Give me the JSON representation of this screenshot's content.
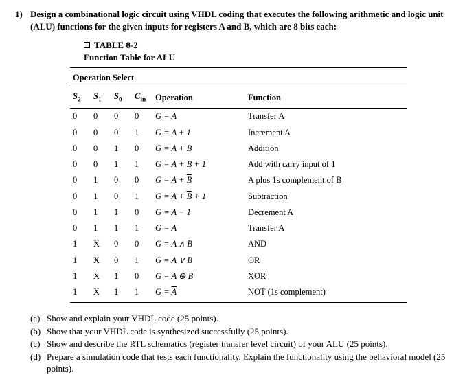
{
  "question": {
    "num": "1)",
    "prompt": "Design a combinational logic circuit using VHDL coding that executes the following arithmetic and logic unit (ALU) functions for the given inputs for registers A and B, which are 8 bits each:"
  },
  "table": {
    "label_title": "TABLE 8-2",
    "label_sub": "Function Table for ALU",
    "group_header": "Operation Select",
    "headers": {
      "s2": "S",
      "s1": "S",
      "s0": "S",
      "cin": "C",
      "op": "Operation",
      "fn": "Function",
      "s2_sub": "2",
      "s1_sub": "1",
      "s0_sub": "0",
      "cin_sub": "in"
    },
    "rows": [
      {
        "s": [
          "0",
          "0",
          "0",
          "0"
        ],
        "op": "G = A",
        "fn": "Transfer A"
      },
      {
        "s": [
          "0",
          "0",
          "0",
          "1"
        ],
        "op": "G = A + 1",
        "fn": "Increment A"
      },
      {
        "s": [
          "0",
          "0",
          "1",
          "0"
        ],
        "op": "G = A + B",
        "fn": "Addition"
      },
      {
        "s": [
          "0",
          "0",
          "1",
          "1"
        ],
        "op": "G = A + B + 1",
        "fn": "Add with carry input of 1"
      },
      {
        "s": [
          "0",
          "1",
          "0",
          "0"
        ],
        "op": "G = A + B̅",
        "fn": "A plus 1s complement of B",
        "ov": "B"
      },
      {
        "s": [
          "0",
          "1",
          "0",
          "1"
        ],
        "op": "G = A + B̅ + 1",
        "fn": "Subtraction",
        "ov": "B"
      },
      {
        "s": [
          "0",
          "1",
          "1",
          "0"
        ],
        "op": "G = A − 1",
        "fn": "Decrement A"
      },
      {
        "s": [
          "0",
          "1",
          "1",
          "1"
        ],
        "op": "G = A",
        "fn": "Transfer A"
      },
      {
        "s": [
          "1",
          "X",
          "0",
          "0"
        ],
        "op": "G = A ∧ B",
        "fn": "AND"
      },
      {
        "s": [
          "1",
          "X",
          "0",
          "1"
        ],
        "op": "G = A ∨ B",
        "fn": "OR"
      },
      {
        "s": [
          "1",
          "X",
          "1",
          "0"
        ],
        "op": "G = A ⊕ B",
        "fn": "XOR"
      },
      {
        "s": [
          "1",
          "X",
          "1",
          "1"
        ],
        "op": "G = A̅",
        "fn": "NOT (1s complement)",
        "ov": "A"
      }
    ]
  },
  "parts": {
    "a": {
      "lbl": "(a)",
      "txt": "Show and explain your VHDL code (25 points)."
    },
    "b": {
      "lbl": "(b)",
      "txt": "Show that your VHDL code is synthesized successfully (25 points)."
    },
    "c": {
      "lbl": "(c)",
      "txt": "Show and describe the RTL schematics (register transfer level circuit) of your ALU (25 points)."
    },
    "d": {
      "lbl": "(d)",
      "txt": "Prepare a simulation code that tests each functionality. Explain the functionality using the behavioral model (25 points)."
    }
  }
}
